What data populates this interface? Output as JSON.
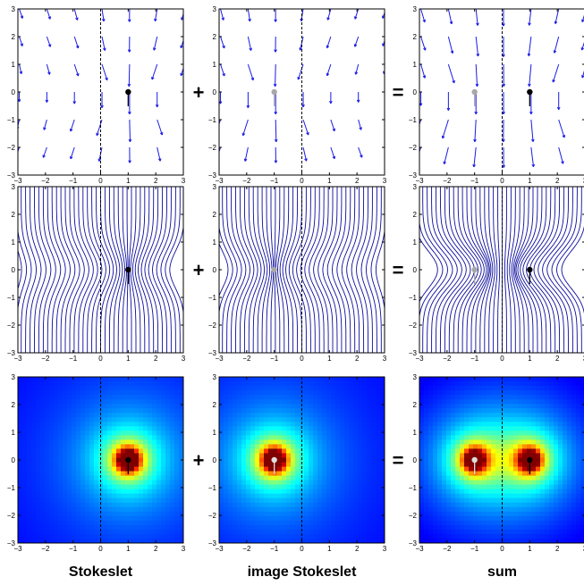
{
  "figure": {
    "columns": [
      {
        "key": "stokeslet",
        "caption": "Stokeslet",
        "sources": [
          {
            "x": 1,
            "y": 0,
            "color": "#000000"
          }
        ]
      },
      {
        "key": "image",
        "caption": "image Stokeslet",
        "sources": [
          {
            "x": -1,
            "y": 0,
            "color": "#a8a8a8"
          }
        ]
      },
      {
        "key": "sum",
        "caption": "sum",
        "sources": [
          {
            "x": -1,
            "y": 0,
            "color": "#a8a8a8"
          },
          {
            "x": 1,
            "y": 0,
            "color": "#000000"
          }
        ]
      }
    ],
    "rows": [
      "velocity-field",
      "streamlines",
      "speed-magnitude"
    ],
    "operators": {
      "plus": "+",
      "equals": "="
    },
    "axis": {
      "xticks": [
        "−3",
        "−2",
        "−1",
        "0",
        "1",
        "2",
        "3"
      ],
      "yticks": [
        "3",
        "2",
        "1",
        "0",
        "−1",
        "−2",
        "−3"
      ],
      "range": [
        -3,
        3
      ]
    },
    "wall_x": 0,
    "colors": {
      "arrow": "#1a1ae6",
      "streamline": "#0d0d9e",
      "background_field": "#0a2fc7"
    }
  }
}
